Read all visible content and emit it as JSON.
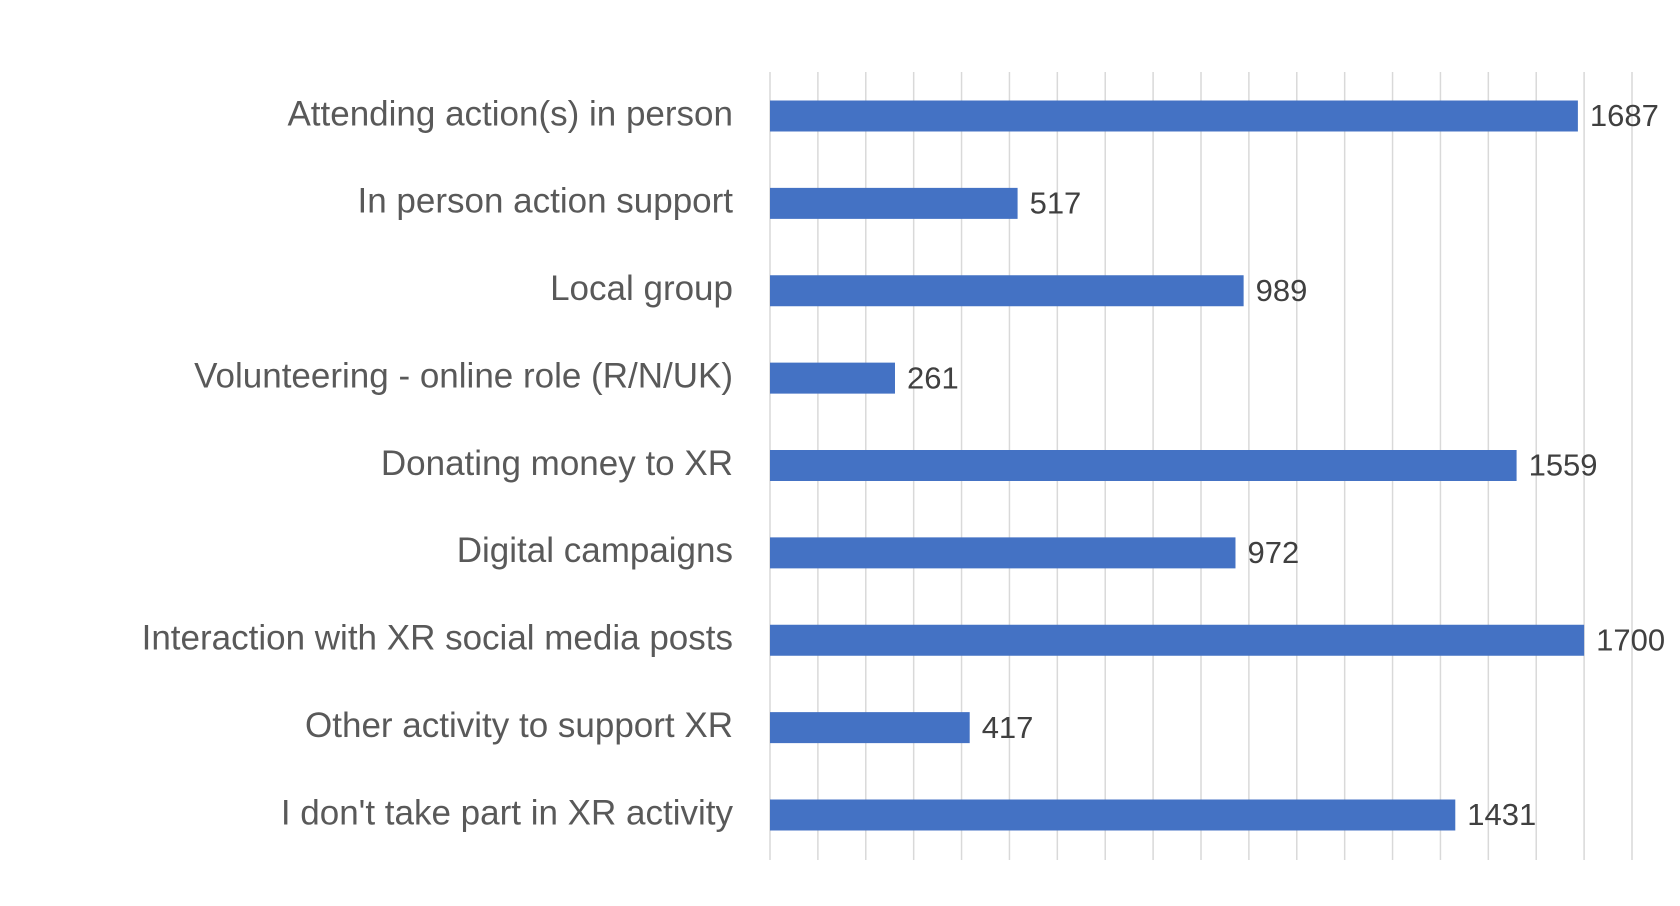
{
  "chart_data": {
    "type": "bar",
    "orientation": "horizontal",
    "categories": [
      "Attending action(s) in person",
      "In person action support",
      "Local group",
      "Volunteering - online role (R/N/UK)",
      "Donating money to XR",
      "Digital campaigns ",
      "Interaction with XR social media posts",
      "Other activity to support XR",
      "I don't take part in XR activity"
    ],
    "values": [
      1687,
      517,
      989,
      261,
      1559,
      972,
      1700,
      417,
      1431
    ],
    "data_labels": [
      "1687",
      "517",
      "989",
      "261",
      "1559",
      "972",
      "1700",
      "417",
      "1431"
    ],
    "title": "",
    "xlabel": "",
    "ylabel": "",
    "xlim": [
      0,
      1800
    ],
    "grid_step": 100,
    "grid": true,
    "legend": "none",
    "bar_color": "#4472C4"
  }
}
